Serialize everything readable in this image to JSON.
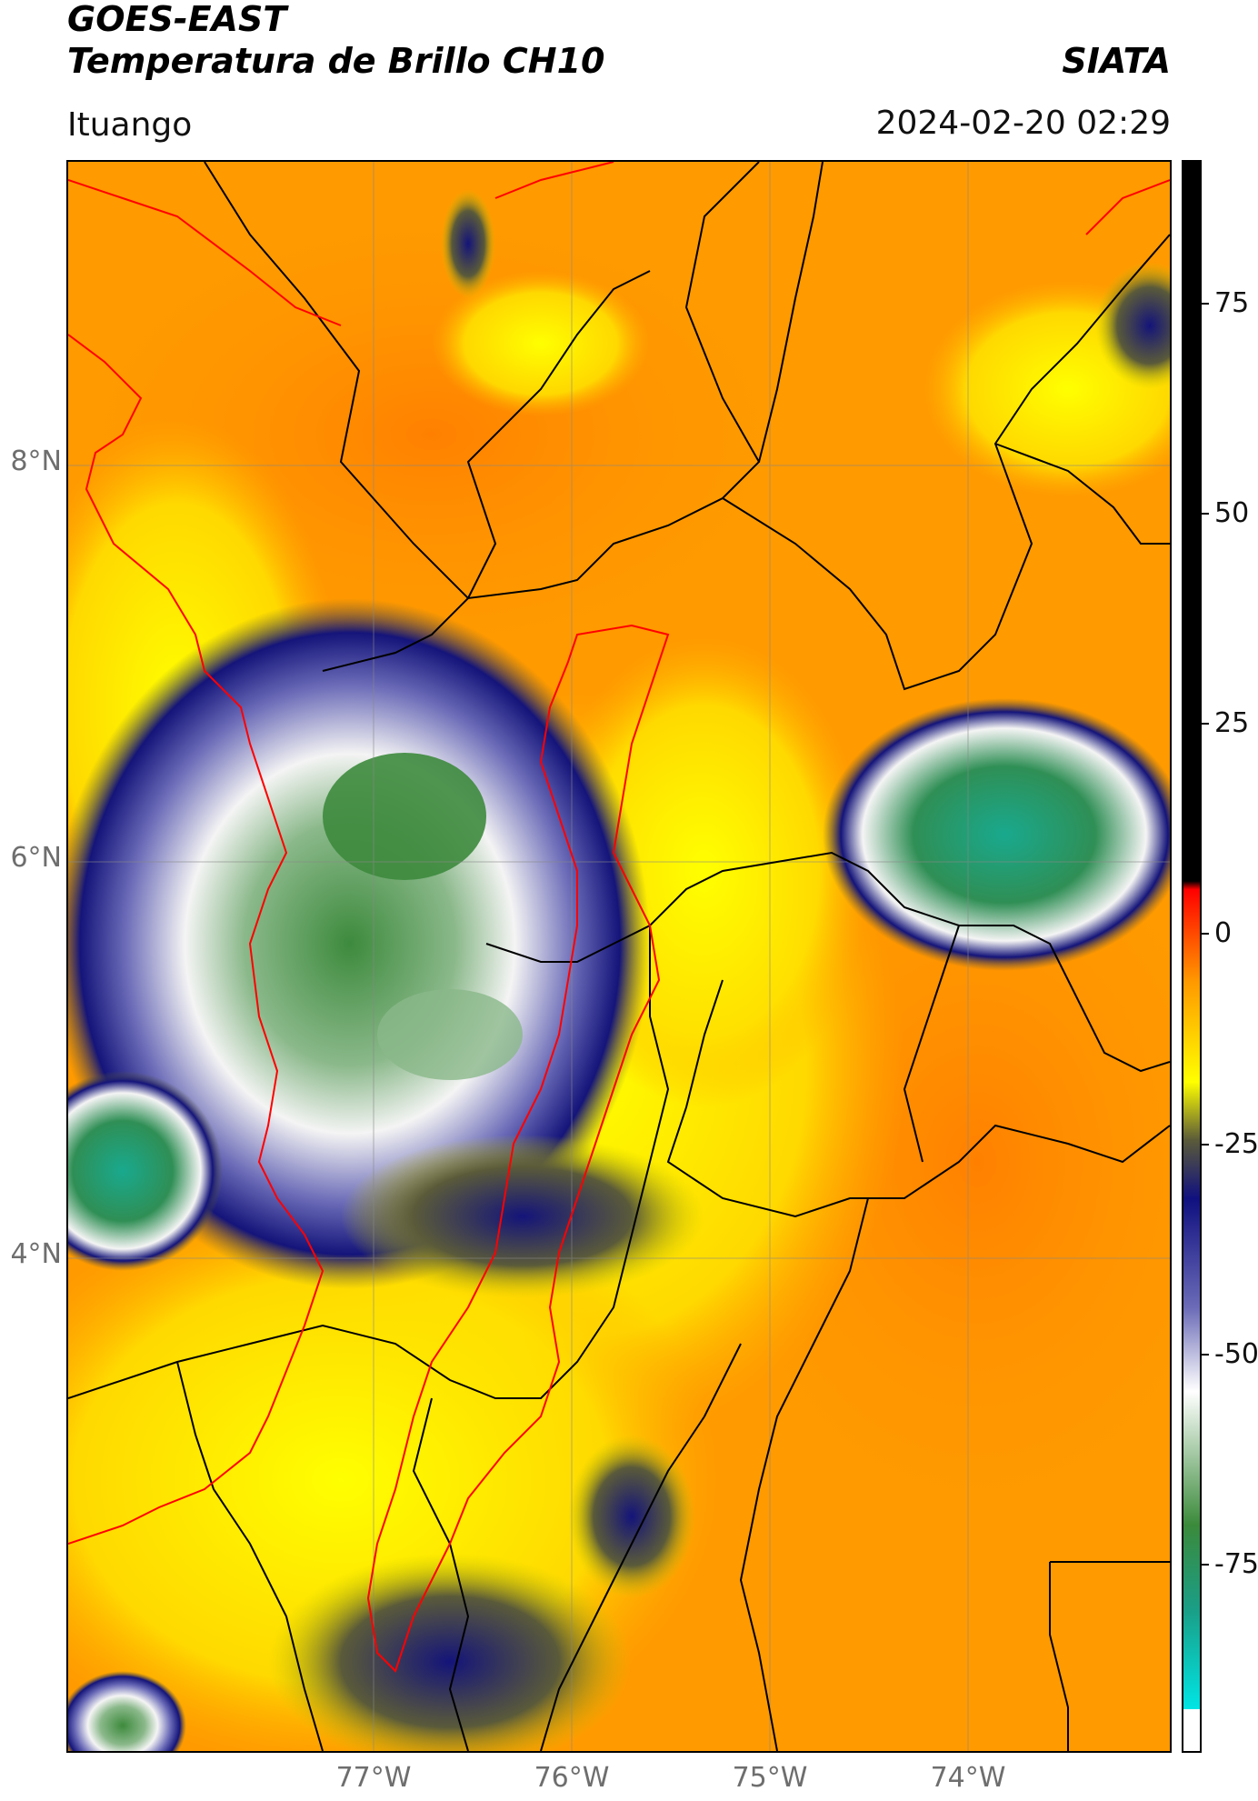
{
  "header": {
    "title_line1": "GOES-EAST",
    "title_line2": "Temperatura de Brillo CH10",
    "agency": "SIATA",
    "region": "Ituango",
    "datetime": "2024-02-20 02:29"
  },
  "axes": {
    "lat_labels": [
      "8°N",
      "6°N",
      "4°N"
    ],
    "lon_labels": [
      "77°W",
      "76°W",
      "75°W",
      "74°W"
    ]
  },
  "colorbar": {
    "tick_labels": [
      "75",
      "50",
      "25",
      "0",
      "-25",
      "-50",
      "-75"
    ],
    "stops": [
      {
        "color": "#00e5e5",
        "value": -90
      },
      {
        "color": "#1a9e86",
        "value": -78
      },
      {
        "color": "#3b8a3b",
        "value": -68
      },
      {
        "color": "#ffffff",
        "value": -52
      },
      {
        "color": "#6b6bb8",
        "value": -42
      },
      {
        "color": "#101080",
        "value": -29
      },
      {
        "color": "#5a5a3a",
        "value": -22
      },
      {
        "color": "#ffff00",
        "value": -15
      },
      {
        "color": "#ff9900",
        "value": -3
      },
      {
        "color": "#ff0000",
        "value": 8
      },
      {
        "color": "#000000",
        "value": 9
      }
    ]
  },
  "colors": {
    "background": "#ff9a00",
    "warm_orange": "#ff8a00",
    "yellow": "#ffff00",
    "cloud_navy": "#14147a",
    "cloud_white": "#f4f4f4",
    "cloud_green": "#3d8a3d",
    "cloud_teal": "#19a98e",
    "coast_boundary": "#ff0000",
    "admin_boundary": "#000000",
    "gridline": "#888888"
  }
}
